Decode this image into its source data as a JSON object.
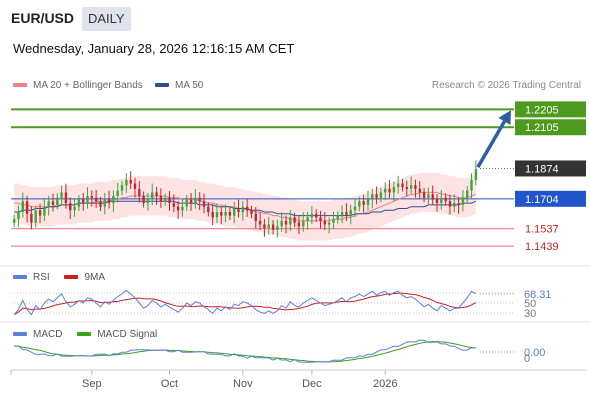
{
  "header": {
    "pair": "EUR/USD",
    "timeframe": "DAILY",
    "datetime": "Wednesday, January 28, 2026 12:16:15 AM CET",
    "credit": "Research © 2026 Trading Central"
  },
  "legend": {
    "ma20": {
      "label": "MA 20 + Bollinger Bands",
      "color": "#f08080"
    },
    "ma50": {
      "label": "MA 50",
      "color": "#2f4f8f"
    }
  },
  "colors": {
    "up": "#3aa83a",
    "down": "#c4262e",
    "resistance": "#4c9a1e",
    "pivot": "#2255cc",
    "support": "#f08a94",
    "band_fill": "#fde3e3",
    "arrow": "#2f5ea8",
    "current_label_bg": "#333333"
  },
  "chart_data": [
    {
      "type": "candlestick",
      "title": "EUR/USD DAILY",
      "x_ticks": [
        "Sep",
        "Oct",
        "Nov",
        "Dec",
        "2026"
      ],
      "ylim": [
        1.135,
        1.228
      ],
      "levels": [
        {
          "value": 1.2205,
          "label": "1.2205",
          "kind": "resistance"
        },
        {
          "value": 1.2105,
          "label": "1.2105",
          "kind": "resistance"
        },
        {
          "value": 1.1874,
          "label": "1.1874",
          "kind": "current"
        },
        {
          "value": 1.1704,
          "label": "1.1704",
          "kind": "pivot"
        },
        {
          "value": 1.1537,
          "label": "1.1537",
          "kind": "support"
        },
        {
          "value": 1.1439,
          "label": "1.1439",
          "kind": "support"
        }
      ],
      "close": [
        1.159,
        1.163,
        1.169,
        1.162,
        1.157,
        1.164,
        1.161,
        1.166,
        1.169,
        1.167,
        1.171,
        1.174,
        1.168,
        1.164,
        1.166,
        1.17,
        1.168,
        1.172,
        1.171,
        1.169,
        1.166,
        1.17,
        1.168,
        1.172,
        1.175,
        1.178,
        1.181,
        1.179,
        1.176,
        1.172,
        1.168,
        1.17,
        1.174,
        1.172,
        1.169,
        1.171,
        1.168,
        1.166,
        1.164,
        1.166,
        1.17,
        1.168,
        1.171,
        1.169,
        1.166,
        1.163,
        1.16,
        1.163,
        1.161,
        1.163,
        1.161,
        1.165,
        1.163,
        1.166,
        1.164,
        1.162,
        1.158,
        1.156,
        1.154,
        1.156,
        1.153,
        1.155,
        1.158,
        1.156,
        1.16,
        1.157,
        1.155,
        1.158,
        1.16,
        1.162,
        1.16,
        1.158,
        1.156,
        1.157,
        1.159,
        1.161,
        1.163,
        1.161,
        1.164,
        1.166,
        1.169,
        1.167,
        1.17,
        1.173,
        1.171,
        1.174,
        1.176,
        1.174,
        1.177,
        1.179,
        1.177,
        1.176,
        1.178,
        1.176,
        1.174,
        1.171,
        1.173,
        1.17,
        1.168,
        1.171,
        1.169,
        1.166,
        1.168,
        1.167,
        1.171,
        1.175,
        1.181,
        1.187
      ],
      "ma20": [
        1.168,
        1.168,
        1.167,
        1.167,
        1.166,
        1.166,
        1.166,
        1.166,
        1.166,
        1.166,
        1.167,
        1.167,
        1.167,
        1.167,
        1.167,
        1.168,
        1.168,
        1.168,
        1.168,
        1.169,
        1.169,
        1.169,
        1.169,
        1.17,
        1.17,
        1.171,
        1.171,
        1.172,
        1.172,
        1.172,
        1.172,
        1.172,
        1.172,
        1.172,
        1.172,
        1.172,
        1.171,
        1.171,
        1.171,
        1.17,
        1.17,
        1.17,
        1.17,
        1.169,
        1.169,
        1.168,
        1.168,
        1.167,
        1.167,
        1.166,
        1.166,
        1.166,
        1.165,
        1.165,
        1.164,
        1.164,
        1.163,
        1.163,
        1.162,
        1.162,
        1.161,
        1.161,
        1.16,
        1.16,
        1.159,
        1.159,
        1.158,
        1.158,
        1.158,
        1.158,
        1.158,
        1.158,
        1.158,
        1.158,
        1.159,
        1.159,
        1.159,
        1.16,
        1.16,
        1.161,
        1.162,
        1.162,
        1.163,
        1.164,
        1.165,
        1.166,
        1.167,
        1.168,
        1.169,
        1.17,
        1.171,
        1.172,
        1.173,
        1.173,
        1.174,
        1.174,
        1.174,
        1.174,
        1.174,
        1.173,
        1.173,
        1.172,
        1.172,
        1.171,
        1.171,
        1.171,
        1.172,
        1.173
      ],
      "ma50": [
        1.163,
        1.163,
        1.164,
        1.164,
        1.164,
        1.165,
        1.165,
        1.165,
        1.166,
        1.166,
        1.166,
        1.167,
        1.167,
        1.167,
        1.167,
        1.168,
        1.168,
        1.168,
        1.168,
        1.168,
        1.168,
        1.168,
        1.169,
        1.169,
        1.169,
        1.169,
        1.169,
        1.169,
        1.169,
        1.169,
        1.169,
        1.169,
        1.169,
        1.169,
        1.169,
        1.169,
        1.169,
        1.169,
        1.168,
        1.168,
        1.168,
        1.168,
        1.168,
        1.167,
        1.167,
        1.167,
        1.167,
        1.166,
        1.166,
        1.166,
        1.166,
        1.165,
        1.165,
        1.165,
        1.165,
        1.164,
        1.164,
        1.164,
        1.163,
        1.163,
        1.163,
        1.162,
        1.162,
        1.162,
        1.162,
        1.161,
        1.161,
        1.161,
        1.161,
        1.161,
        1.161,
        1.161,
        1.161,
        1.161,
        1.161,
        1.161,
        1.161,
        1.161,
        1.161,
        1.162,
        1.162,
        1.162,
        1.162,
        1.163,
        1.163,
        1.163,
        1.164,
        1.164,
        1.164,
        1.165,
        1.165,
        1.165,
        1.166,
        1.166,
        1.166,
        1.166,
        1.167,
        1.167,
        1.167,
        1.167,
        1.167,
        1.167,
        1.167,
        1.167,
        1.168,
        1.168,
        1.168,
        1.169
      ],
      "band_width": 0.011
    },
    {
      "type": "line",
      "title": "RSI",
      "series": [
        {
          "name": "RSI",
          "color": "#5b7fd6"
        },
        {
          "name": "9MA",
          "color": "#cc1f1f"
        }
      ],
      "levels": [
        70,
        50,
        30
      ],
      "last_value": "68.31",
      "ylim": [
        20,
        80
      ]
    },
    {
      "type": "line",
      "title": "MACD",
      "series": [
        {
          "name": "MACD",
          "color": "#5b7fd6"
        },
        {
          "name": "MACD Signal",
          "color": "#3e9e1a"
        }
      ],
      "last_value": "0.00",
      "zero_label": "0"
    }
  ],
  "rsi_levels_labels": [
    "50",
    "30"
  ]
}
